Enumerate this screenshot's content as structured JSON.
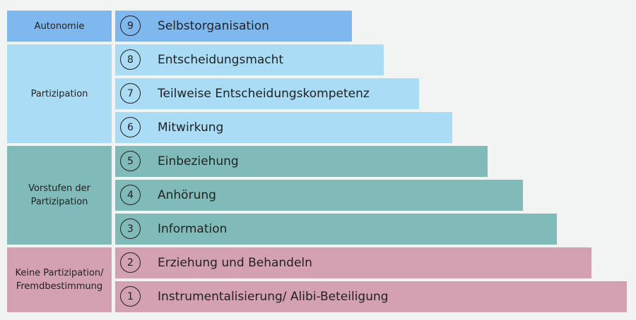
{
  "groups": [
    {
      "label": "Autonomie",
      "color": "#7fb8ee",
      "levels": [
        {
          "number": "9",
          "label": "Selbstorganisation"
        }
      ]
    },
    {
      "label": "Partizipation",
      "color": "#aadcf5",
      "levels": [
        {
          "number": "8",
          "label": "Entscheidungsmacht"
        },
        {
          "number": "7",
          "label": "Teilweise Entscheidungskompetenz"
        },
        {
          "number": "6",
          "label": "Mitwirkung"
        }
      ]
    },
    {
      "label": "Vorstufen der Partizipation",
      "color": "#80bbba",
      "levels": [
        {
          "number": "5",
          "label": "Einbeziehung"
        },
        {
          "number": "4",
          "label": "Anhörung"
        },
        {
          "number": "3",
          "label": "Information"
        }
      ]
    },
    {
      "label": "Keine Partizipation/ Fremdbestimmung",
      "color": "#d3a1b1",
      "levels": [
        {
          "number": "2",
          "label": "Erziehung und Behandeln"
        },
        {
          "number": "1",
          "label": "Instrumentalisierung/ Alibi-Beteiligung"
        }
      ]
    }
  ]
}
